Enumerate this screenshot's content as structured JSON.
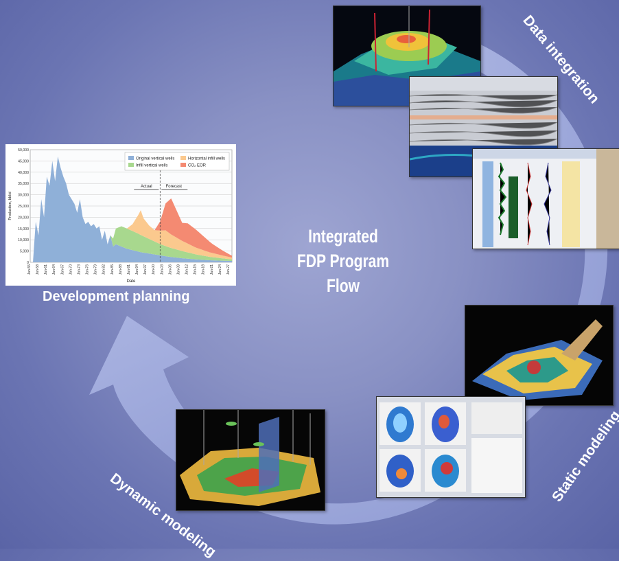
{
  "title": {
    "line1": "Integrated",
    "line2": "FDP Program Flow"
  },
  "stages": {
    "data_integration": "Data integration",
    "static_modeling": "Static modeling",
    "dynamic_modeling": "Dynamic modeling",
    "development_planning": "Development planning"
  },
  "chart_data": {
    "type": "area",
    "xlabel": "Date",
    "ylabel": "Production, bbl/d",
    "ylim": [
      0,
      50000
    ],
    "y_ticks": [
      "0",
      "5,000",
      "10,000",
      "15,000",
      "20,000",
      "25,000",
      "30,000",
      "35,000",
      "40,000",
      "45,000",
      "50,000"
    ],
    "x_ticks": [
      "Jan-55",
      "Jan-58",
      "Jan-61",
      "Jan-64",
      "Jan-67",
      "Jan-70",
      "Jan-73",
      "Jan-76",
      "Jan-79",
      "Jan-82",
      "Jan-85",
      "Jan-88",
      "Jan-91",
      "Jan-94",
      "Jan-97",
      "Jan-00",
      "Jan-03",
      "Jan-06",
      "Jan-09",
      "Jan-12",
      "Jan-15",
      "Jan-18",
      "Jan-21",
      "Jan-24",
      "Jan-27"
    ],
    "annotations": {
      "actual": "Actual",
      "forecast": "Forecast"
    },
    "series": [
      {
        "name": "Original vertical wells",
        "color": "#8fb0d8",
        "x": [
          1956,
          1957,
          1958,
          1959,
          1960,
          1961,
          1962,
          1963,
          1964,
          1965,
          1966,
          1967,
          1968,
          1969,
          1970,
          1971,
          1972,
          1973,
          1974,
          1975,
          1976,
          1977,
          1978,
          1979,
          1980,
          1981,
          1982,
          1983,
          1984,
          1985,
          1986,
          1988,
          1990,
          1995,
          2000,
          2005,
          2010,
          2015,
          2020,
          2025,
          2028
        ],
        "y": [
          0,
          18000,
          12000,
          28000,
          20000,
          38000,
          34000,
          45000,
          36000,
          47000,
          42000,
          38000,
          35000,
          30000,
          28000,
          26000,
          22000,
          28000,
          20000,
          17000,
          18000,
          16000,
          17000,
          15000,
          16000,
          10000,
          14000,
          8000,
          12000,
          7000,
          8000,
          7000,
          6000,
          4500,
          3500,
          2500,
          1800,
          1300,
          900,
          700,
          600
        ]
      },
      {
        "name": "Horizontal infill wells",
        "color": "#fbc98e",
        "x": [
          1990,
          1992,
          1994,
          1995,
          1996,
          1998,
          2000,
          2002,
          2004,
          2006,
          2010,
          2015,
          2020,
          2025,
          2028
        ],
        "y": [
          0,
          3000,
          8000,
          11000,
          8000,
          6000,
          5000,
          6000,
          7000,
          6000,
          4500,
          3000,
          2000,
          1200,
          800
        ]
      },
      {
        "name": "Infill vertical wells",
        "color": "#a8d88e",
        "x": [
          1984,
          1986,
          1988,
          1990,
          1994,
          1998,
          2002,
          2006,
          2010,
          2015,
          2020,
          2025,
          2028
        ],
        "y": [
          0,
          7000,
          9000,
          9000,
          8000,
          6500,
          5000,
          4000,
          3200,
          2200,
          1500,
          1000,
          700
        ]
      },
      {
        "name": "CO2 EOR",
        "color": "#f48a72",
        "x": [
          2000,
          2002,
          2004,
          2006,
          2008,
          2010,
          2012,
          2015,
          2018,
          2021,
          2024,
          2027,
          2028
        ],
        "y": [
          0,
          4000,
          12000,
          16000,
          12000,
          8000,
          9000,
          8000,
          6000,
          4000,
          2500,
          1200,
          800
        ]
      }
    ],
    "legend": {
      "labels": [
        "Original vertical wells",
        "Horizontal infill wells",
        "Infill vertical wells",
        "CO₂ EOR"
      ],
      "placement": "top-right"
    },
    "grid": true
  },
  "colors": {
    "background": "#8189c0",
    "arrow": "#a8b3e0",
    "label": "#ffffff"
  }
}
